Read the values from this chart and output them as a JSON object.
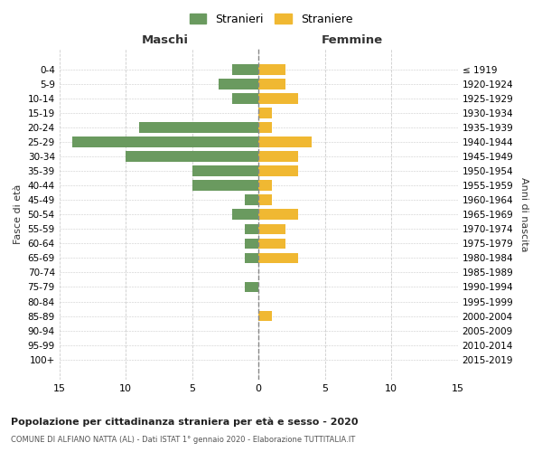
{
  "age_groups": [
    "0-4",
    "5-9",
    "10-14",
    "15-19",
    "20-24",
    "25-29",
    "30-34",
    "35-39",
    "40-44",
    "45-49",
    "50-54",
    "55-59",
    "60-64",
    "65-69",
    "70-74",
    "75-79",
    "80-84",
    "85-89",
    "90-94",
    "95-99",
    "100+"
  ],
  "birth_years": [
    "2015-2019",
    "2010-2014",
    "2005-2009",
    "2000-2004",
    "1995-1999",
    "1990-1994",
    "1985-1989",
    "1980-1984",
    "1975-1979",
    "1970-1974",
    "1965-1969",
    "1960-1964",
    "1955-1959",
    "1950-1954",
    "1945-1949",
    "1940-1944",
    "1935-1939",
    "1930-1934",
    "1925-1929",
    "1920-1924",
    "≤ 1919"
  ],
  "maschi": [
    2,
    3,
    2,
    0,
    9,
    14,
    10,
    5,
    5,
    1,
    2,
    1,
    1,
    1,
    0,
    1,
    0,
    0,
    0,
    0,
    0
  ],
  "femmine": [
    2,
    2,
    3,
    1,
    1,
    4,
    3,
    3,
    1,
    1,
    3,
    2,
    2,
    3,
    0,
    0,
    0,
    1,
    0,
    0,
    0
  ],
  "color_maschi": "#6a9a5f",
  "color_femmine": "#f0b832",
  "title1": "Popolazione per cittadinanza straniera per età e sesso - 2020",
  "title2": "COMUNE DI ALFIANO NATTA (AL) - Dati ISTAT 1° gennaio 2020 - Elaborazione TUTTITALIA.IT",
  "xlabel_left": "Maschi",
  "xlabel_right": "Femmine",
  "ylabel_left": "Fasce di età",
  "ylabel_right": "Anni di nascita",
  "legend_maschi": "Stranieri",
  "legend_femmine": "Straniere",
  "xlim": 15,
  "bg_color": "#ffffff",
  "grid_color": "#cccccc",
  "axis_color": "#555555"
}
